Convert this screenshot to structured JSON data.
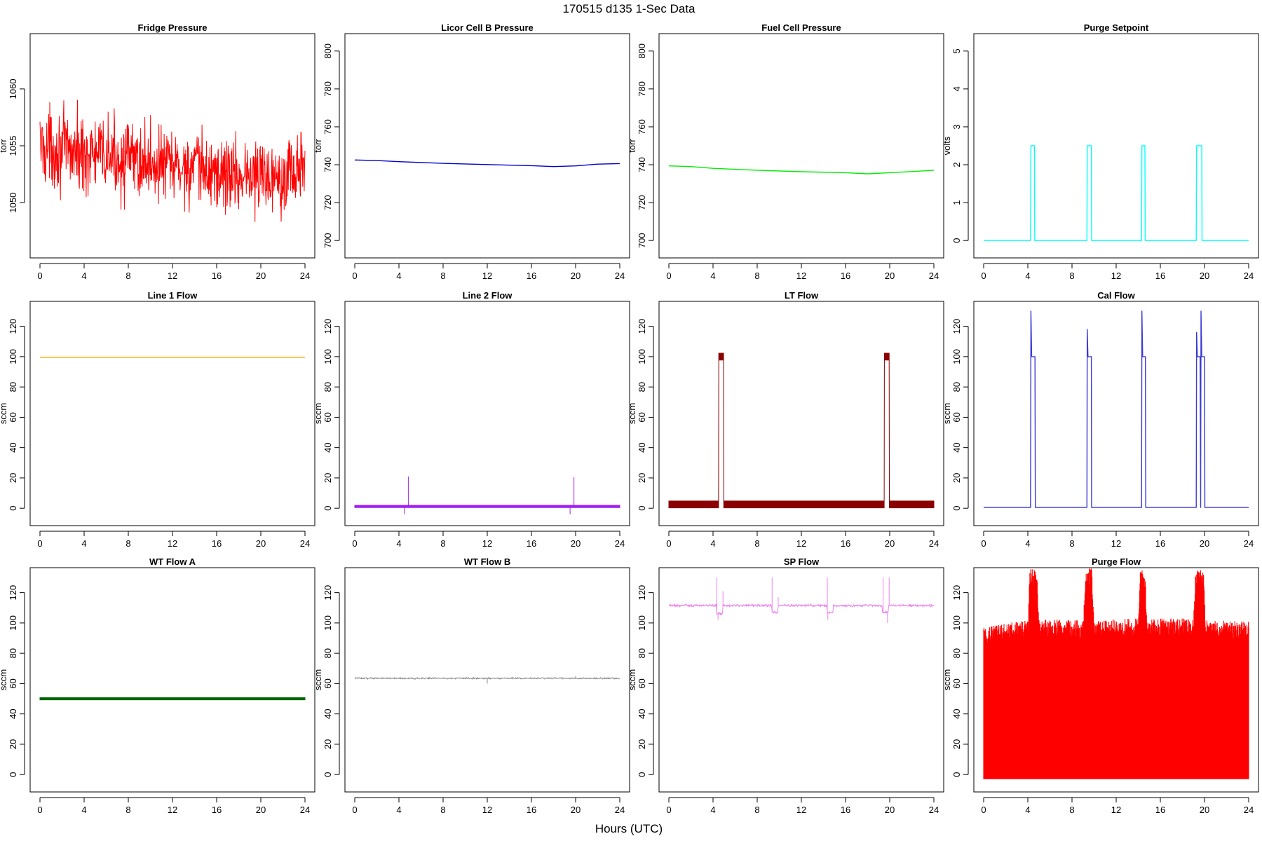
{
  "title": "170515   d135   1-Sec Data",
  "xlabel": "Hours (UTC)",
  "colors": {
    "red": "#ff0000",
    "blue": "#0000cd",
    "green": "#00ee00",
    "cyan": "#00ffff",
    "orange": "#ffa500",
    "purple": "#a020f0",
    "darkred": "#8b0000",
    "slateblue": "#3b3bd6",
    "darkgreen": "#006400",
    "gray": "#8c8c8c",
    "violet": "#ee82ee"
  },
  "chart_data": [
    {
      "type": "line",
      "title": "Fridge Pressure",
      "xlabel": "",
      "ylabel": "torr",
      "xlim": [
        0,
        24
      ],
      "ylim": [
        1046,
        1064
      ],
      "x_ticks": [
        "0",
        "4",
        "8",
        "12",
        "16",
        "20",
        "24"
      ],
      "y_ticks": [
        "1050",
        "1055",
        "1060"
      ],
      "series": [
        {
          "color": "red",
          "style": "noisy",
          "x": [
            0,
            4,
            8,
            12,
            16,
            20,
            24
          ],
          "y": [
            1055.0,
            1054.3,
            1053.8,
            1053.2,
            1052.6,
            1052.3,
            1053.0
          ],
          "noise": 5
        }
      ]
    },
    {
      "type": "line",
      "title": "Licor Cell B Pressure",
      "xlabel": "",
      "ylabel": "torr",
      "xlim": [
        0,
        24
      ],
      "ylim": [
        696,
        804
      ],
      "x_ticks": [
        "0",
        "4",
        "8",
        "12",
        "16",
        "20",
        "24"
      ],
      "y_ticks": [
        "700",
        "720",
        "740",
        "760",
        "780",
        "800"
      ],
      "series": [
        {
          "color": "blue",
          "x": [
            0,
            2,
            4,
            8,
            12,
            16,
            18,
            20,
            22,
            24
          ],
          "y": [
            742.5,
            742.2,
            741.6,
            740.7,
            740.1,
            739.5,
            739.0,
            739.4,
            740.3,
            740.6
          ]
        }
      ]
    },
    {
      "type": "line",
      "title": "Fuel Cell Pressure",
      "xlabel": "",
      "ylabel": "torr",
      "xlim": [
        0,
        24
      ],
      "ylim": [
        696,
        804
      ],
      "x_ticks": [
        "0",
        "4",
        "8",
        "12",
        "16",
        "20",
        "24"
      ],
      "y_ticks": [
        "700",
        "720",
        "740",
        "760",
        "780",
        "800"
      ],
      "series": [
        {
          "color": "green",
          "x": [
            0,
            2,
            4,
            8,
            12,
            16,
            18,
            20,
            22,
            24
          ],
          "y": [
            739.4,
            739.0,
            738.1,
            737.1,
            736.3,
            735.8,
            735.2,
            735.8,
            736.4,
            737.1
          ]
        }
      ]
    },
    {
      "type": "line",
      "title": "Purge Setpoint",
      "xlabel": "",
      "ylabel": "volts",
      "xlim": [
        0,
        24
      ],
      "ylim": [
        -0.2,
        5.2
      ],
      "x_ticks": [
        "0",
        "4",
        "8",
        "12",
        "16",
        "20",
        "24"
      ],
      "y_ticks": [
        "0",
        "1",
        "2",
        "3",
        "4",
        "5"
      ],
      "series": [
        {
          "color": "cyan",
          "x": [
            0,
            4.25,
            4.28,
            4.6,
            4.63,
            9.35,
            9.38,
            9.75,
            9.78,
            14.3,
            14.33,
            14.6,
            14.63,
            19.25,
            19.28,
            19.75,
            19.78,
            24
          ],
          "y": [
            0,
            0,
            2.5,
            2.5,
            0,
            0,
            2.5,
            2.5,
            0,
            0,
            2.5,
            2.5,
            0,
            0,
            2.5,
            2.5,
            0,
            0
          ]
        }
      ]
    },
    {
      "type": "line",
      "title": "Line 1 Flow",
      "xlabel": "",
      "ylabel": "sccm",
      "xlim": [
        0,
        24
      ],
      "ylim": [
        -5,
        130
      ],
      "x_ticks": [
        "0",
        "4",
        "8",
        "12",
        "16",
        "20",
        "24"
      ],
      "y_ticks": [
        "0",
        "20",
        "40",
        "60",
        "80",
        "100",
        "120"
      ],
      "series": [
        {
          "color": "orange",
          "x": [
            0,
            24
          ],
          "y": [
            99.6,
            99.6
          ]
        }
      ]
    },
    {
      "type": "line",
      "title": "Line 2 Flow",
      "xlabel": "",
      "ylabel": "sccm",
      "xlim": [
        0,
        24
      ],
      "ylim": [
        -5,
        130
      ],
      "x_ticks": [
        "0",
        "4",
        "8",
        "12",
        "16",
        "20",
        "24"
      ],
      "y_ticks": [
        "0",
        "20",
        "40",
        "60",
        "80",
        "100",
        "120"
      ],
      "series": [
        {
          "color": "purple",
          "style": "band",
          "x": [
            0,
            24
          ],
          "y": [
            1.2,
            1.2
          ],
          "band": 1.5,
          "spikes": [
            {
              "x": 4.5,
              "y": -4
            },
            {
              "x": 4.85,
              "y": 21
            },
            {
              "x": 19.5,
              "y": -4
            },
            {
              "x": 19.85,
              "y": 20.5
            }
          ]
        }
      ]
    },
    {
      "type": "line",
      "title": "LT Flow",
      "xlabel": "",
      "ylabel": "sccm",
      "xlim": [
        0,
        24
      ],
      "ylim": [
        -5,
        130
      ],
      "x_ticks": [
        "0",
        "4",
        "8",
        "12",
        "16",
        "20",
        "24"
      ],
      "y_ticks": [
        "0",
        "20",
        "40",
        "60",
        "80",
        "100",
        "120"
      ],
      "series": [
        {
          "color": "darkred",
          "style": "band",
          "x": [
            0,
            4.5,
            4.52,
            4.95,
            4.97,
            19.5,
            19.52,
            19.95,
            19.97,
            24
          ],
          "y": [
            2.5,
            2.5,
            100,
            100,
            2.5,
            2.5,
            100,
            100,
            2.5,
            2.5
          ],
          "band": 4.5
        }
      ]
    },
    {
      "type": "line",
      "title": "Cal Flow",
      "xlabel": "",
      "ylabel": "sccm",
      "xlim": [
        0,
        24
      ],
      "ylim": [
        -5,
        130
      ],
      "x_ticks": [
        "0",
        "4",
        "8",
        "12",
        "16",
        "20",
        "24"
      ],
      "y_ticks": [
        "0",
        "20",
        "40",
        "60",
        "80",
        "100",
        "120"
      ],
      "series": [
        {
          "color": "slateblue",
          "x": [
            0,
            4.25,
            4.28,
            4.35,
            4.65,
            4.68,
            9.35,
            9.38,
            9.45,
            9.75,
            9.78,
            14.3,
            14.33,
            14.4,
            14.65,
            14.68,
            19.25,
            19.28,
            19.35,
            19.6,
            19.65,
            19.68,
            19.75,
            20.0,
            20.03,
            24
          ],
          "y": [
            0.5,
            0.5,
            130,
            100,
            100,
            0.5,
            0.5,
            118,
            100,
            100,
            0.5,
            0.5,
            130,
            100,
            100,
            0.5,
            0.5,
            116,
            100,
            100,
            0.5,
            130,
            100,
            100,
            0.5,
            0.5
          ]
        }
      ]
    },
    {
      "type": "line",
      "title": "WT Flow A",
      "xlabel": "",
      "ylabel": "sccm",
      "xlim": [
        0,
        24
      ],
      "ylim": [
        -5,
        130
      ],
      "x_ticks": [
        "0",
        "4",
        "8",
        "12",
        "16",
        "20",
        "24"
      ],
      "y_ticks": [
        "0",
        "20",
        "40",
        "60",
        "80",
        "100",
        "120"
      ],
      "series": [
        {
          "color": "darkgreen",
          "style": "band",
          "x": [
            0,
            24
          ],
          "y": [
            50,
            50
          ],
          "band": 1.4
        }
      ]
    },
    {
      "type": "line",
      "title": "WT Flow B",
      "xlabel": "",
      "ylabel": "sccm",
      "xlim": [
        0,
        24
      ],
      "ylim": [
        -5,
        130
      ],
      "x_ticks": [
        "0",
        "4",
        "8",
        "12",
        "16",
        "20",
        "24"
      ],
      "y_ticks": [
        "0",
        "20",
        "40",
        "60",
        "80",
        "100",
        "120"
      ],
      "series": [
        {
          "color": "gray",
          "style": "noisy",
          "x": [
            0,
            24
          ],
          "y": [
            63.5,
            63.5
          ],
          "noise": 0.8,
          "spikes": [
            {
              "x": 12.0,
              "y": 60
            },
            {
              "x": 20.0,
              "y": 64.8
            }
          ]
        }
      ]
    },
    {
      "type": "line",
      "title": "SP Flow",
      "xlabel": "",
      "ylabel": "sccm",
      "xlim": [
        0,
        24
      ],
      "ylim": [
        -5,
        130
      ],
      "x_ticks": [
        "0",
        "4",
        "8",
        "12",
        "16",
        "20",
        "24"
      ],
      "y_ticks": [
        "0",
        "20",
        "40",
        "60",
        "80",
        "100",
        "120"
      ],
      "series": [
        {
          "color": "violet",
          "style": "noisy",
          "x": [
            0,
            4.3,
            4.35,
            4.85,
            4.9,
            9.3,
            9.35,
            9.85,
            9.9,
            14.3,
            14.35,
            14.85,
            14.9,
            19.3,
            19.35,
            19.85,
            19.9,
            24
          ],
          "y": [
            111.5,
            111.5,
            106,
            106,
            111.5,
            111.5,
            107,
            107,
            111.5,
            111.5,
            107,
            107,
            111.5,
            111.5,
            107,
            107,
            111.5,
            111.5
          ],
          "noise": 1.2,
          "spikes": [
            {
              "x": 4.35,
              "y": 130
            },
            {
              "x": 4.45,
              "y": 102
            },
            {
              "x": 4.9,
              "y": 121
            },
            {
              "x": 9.35,
              "y": 130
            },
            {
              "x": 9.9,
              "y": 117
            },
            {
              "x": 14.35,
              "y": 130
            },
            {
              "x": 14.4,
              "y": 102
            },
            {
              "x": 19.4,
              "y": 130
            },
            {
              "x": 19.8,
              "y": 100
            },
            {
              "x": 19.95,
              "y": 130
            }
          ]
        }
      ]
    },
    {
      "type": "line",
      "title": "Purge Flow",
      "xlabel": "",
      "ylabel": "sccm",
      "xlim": [
        0,
        24
      ],
      "ylim": [
        -5,
        130
      ],
      "x_ticks": [
        "0",
        "4",
        "8",
        "12",
        "16",
        "20",
        "24"
      ],
      "y_ticks": [
        "0",
        "20",
        "40",
        "60",
        "80",
        "100",
        "120"
      ],
      "series": [
        {
          "color": "red",
          "style": "fill",
          "x": [
            0,
            4,
            4.2,
            4.8,
            5,
            9,
            9.3,
            9.8,
            10,
            14,
            14.2,
            14.6,
            14.8,
            19,
            19.2,
            19.9,
            20.1,
            24
          ],
          "y": [
            92,
            96,
            130,
            130,
            97,
            96,
            130,
            130,
            96,
            97,
            130,
            130,
            97,
            97,
            130,
            130,
            96,
            95
          ],
          "base": -3,
          "noise": 6
        }
      ]
    }
  ]
}
